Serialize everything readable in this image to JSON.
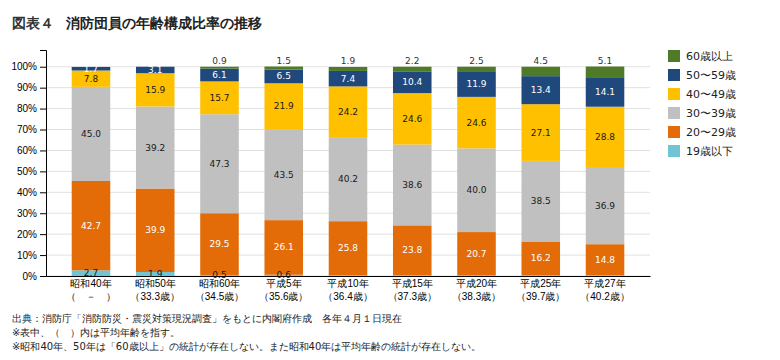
{
  "chart_data": {
    "type": "bar",
    "stacked": true,
    "title": "消防団員の年齢構成比率の推移",
    "figure_label": "図表４",
    "categories": [
      "昭和40年\n（　－　）",
      "昭和50年\n（33.3歳）",
      "昭和60年\n（34.5歳）",
      "平成5年\n（35.6歳）",
      "平成10年\n（36.4歳）",
      "平成15年\n（37.3歳）",
      "平成20年\n（38.3歳）",
      "平成25年\n（39.7歳）",
      "平成27年\n（40.2歳）"
    ],
    "series": [
      {
        "name": "19歳以下",
        "color": "#70c5d4",
        "values": [
          2.7,
          1.9,
          0.5,
          0.6,
          0.4,
          0.4,
          0.3,
          0.3,
          0.4
        ],
        "value_labels": [
          "2.7",
          "1.9",
          "0.5",
          "0.6",
          null,
          null,
          null,
          null,
          null
        ]
      },
      {
        "name": "20〜29歳",
        "color": "#e36c09",
        "values": [
          42.7,
          39.9,
          29.5,
          26.1,
          25.8,
          23.8,
          20.7,
          16.2,
          14.8
        ],
        "value_labels": [
          "42.7",
          "39.9",
          "29.5",
          "26.1",
          "25.8",
          "23.8",
          "20.7",
          "16.2",
          "14.8"
        ]
      },
      {
        "name": "30〜39歳",
        "color": "#c0c0c0",
        "values": [
          45.0,
          39.2,
          47.3,
          43.5,
          40.2,
          38.6,
          40.0,
          38.5,
          36.9
        ],
        "value_labels": [
          "45.0",
          "39.2",
          "47.3",
          "43.5",
          "40.2",
          "38.6",
          "40.0",
          "38.5",
          "36.9"
        ]
      },
      {
        "name": "40〜49歳",
        "color": "#ffc000",
        "values": [
          7.8,
          15.9,
          15.7,
          21.9,
          24.2,
          24.6,
          24.6,
          27.1,
          28.8
        ],
        "value_labels": [
          "7.8",
          "15.9",
          "15.7",
          "21.9",
          "24.2",
          "24.6",
          "24.6",
          "27.1",
          "28.8"
        ]
      },
      {
        "name": "50〜59歳",
        "color": "#1f497d",
        "values": [
          1.7,
          3.1,
          6.1,
          6.5,
          7.4,
          10.4,
          11.9,
          13.4,
          14.1
        ],
        "value_labels": [
          "1.7",
          "3.1",
          "6.1",
          "6.5",
          "7.4",
          "10.4",
          "11.9",
          "13.4",
          "14.1"
        ]
      },
      {
        "name": "60歳以上",
        "color": "#4f7a28",
        "values": [
          0.0,
          0.0,
          0.9,
          1.5,
          1.9,
          2.2,
          2.5,
          4.5,
          5.1
        ],
        "value_labels": [
          null,
          null,
          "0.9",
          "1.5",
          "1.9",
          "2.2",
          "2.5",
          "4.5",
          "5.1"
        ]
      }
    ],
    "ylim": [
      0,
      108
    ],
    "yticks": [
      {
        "value": 0,
        "label": "0%"
      },
      {
        "value": 10,
        "label": "10%"
      },
      {
        "value": 20,
        "label": "20%"
      },
      {
        "value": 30,
        "label": "30%"
      },
      {
        "value": 40,
        "label": "40%"
      },
      {
        "value": 50,
        "label": "50%"
      },
      {
        "value": 60,
        "label": "60%"
      },
      {
        "value": 70,
        "label": "70%"
      },
      {
        "value": 80,
        "label": "80%"
      },
      {
        "value": 90,
        "label": "90%"
      },
      {
        "value": 100,
        "label": "100%"
      }
    ],
    "grid": true,
    "legend": "right",
    "data_labels": true,
    "footnotes": [
      "出典：消防庁「消防防災・震災対策現況調査」をもとに内閣府作成　各年４月１日現在",
      "※表中、（　）内は平均年齢を指す。",
      "※昭和40年、50年は「60歳以上」の統計が存在しない。また昭和40年は平均年齢の統計が存在しない。"
    ]
  }
}
